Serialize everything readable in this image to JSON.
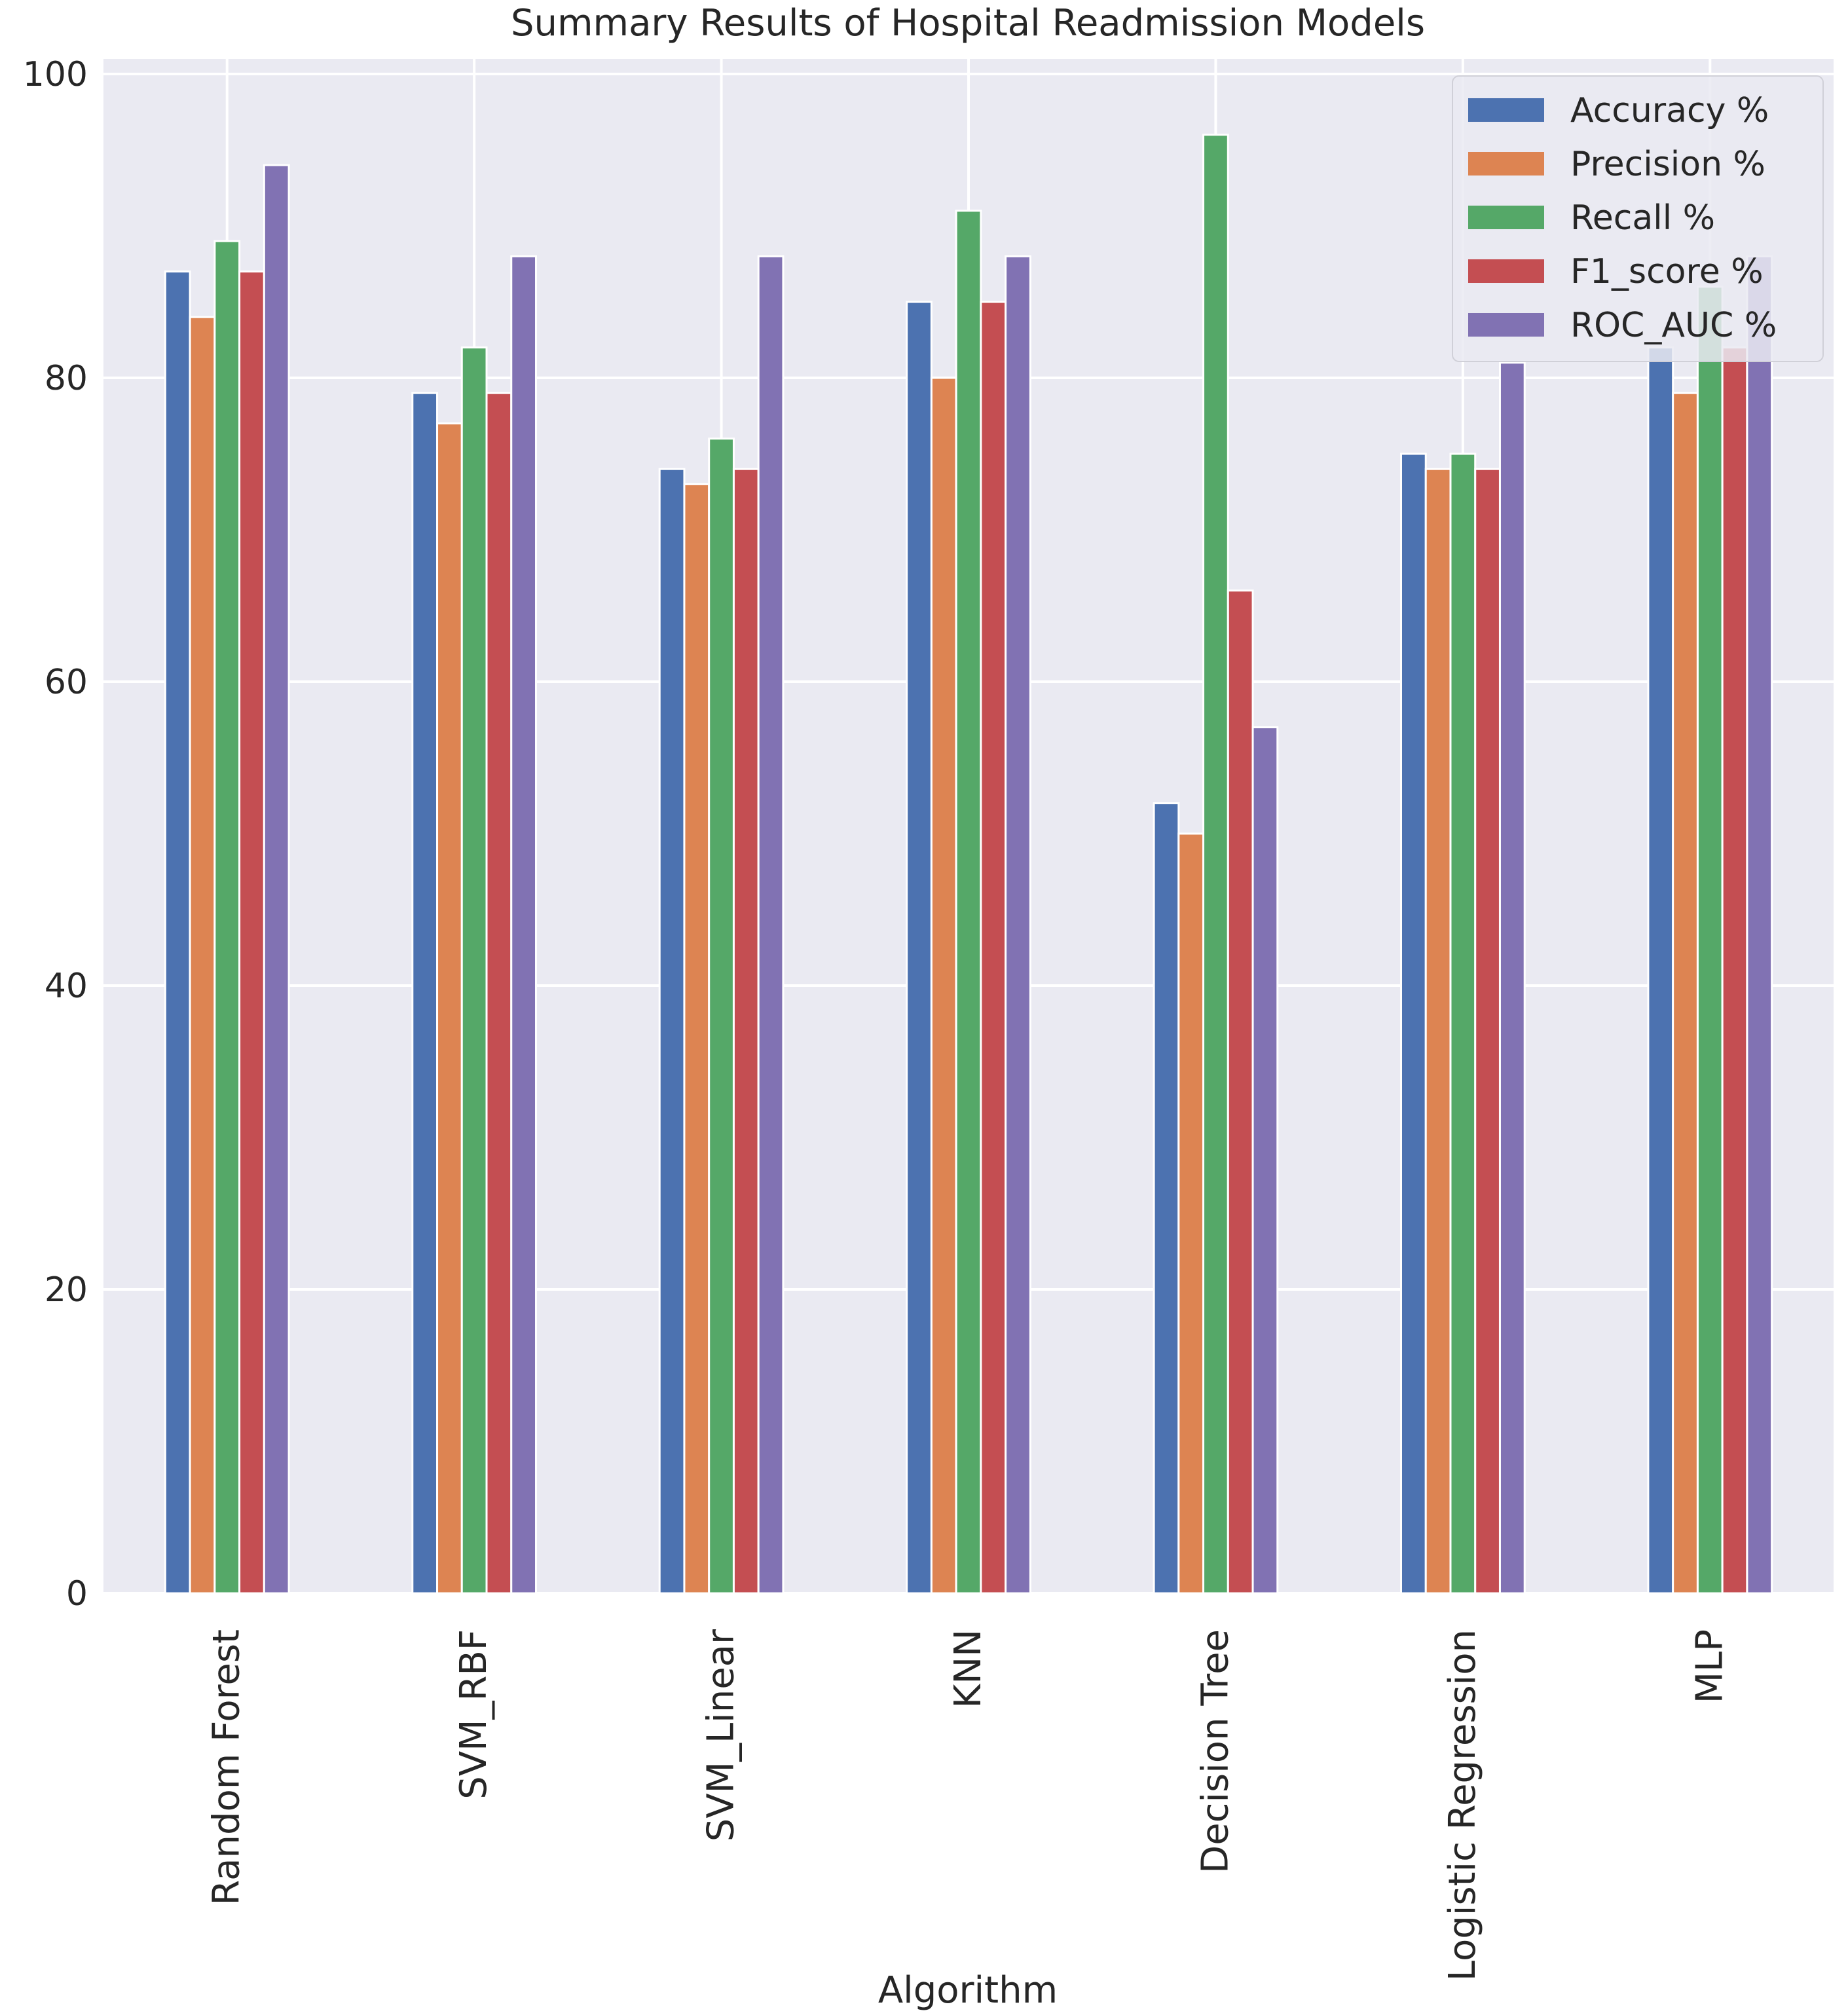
{
  "chart_data": {
    "type": "bar",
    "title": "Summary Results of Hospital Readmission Models",
    "xlabel": "Algorithm",
    "ylabel": "",
    "ylim": [
      0,
      100
    ],
    "yticks": [
      "0",
      "20",
      "40",
      "60",
      "80",
      "100"
    ],
    "grid": true,
    "legend_position": "top-right",
    "categories": [
      "Random Forest",
      "SVM_RBF",
      "SVM_Linear",
      "KNN",
      "Decision Tree",
      "Logistic Regression",
      "MLP"
    ],
    "series": [
      {
        "name": "Accuracy %",
        "color": "#4c72b0",
        "values": [
          87,
          79,
          74,
          85,
          52,
          75,
          82
        ]
      },
      {
        "name": "Precision %",
        "color": "#dd8452",
        "values": [
          84,
          77,
          73,
          80,
          50,
          74,
          79
        ]
      },
      {
        "name": "Recall %",
        "color": "#55a868",
        "values": [
          89,
          82,
          76,
          91,
          96,
          75,
          86
        ]
      },
      {
        "name": "F1_score %",
        "color": "#c44e52",
        "values": [
          87,
          79,
          74,
          85,
          66,
          74,
          82
        ]
      },
      {
        "name": "ROC_AUC %",
        "color": "#8172b3",
        "values": [
          94,
          88,
          88,
          88,
          57,
          81,
          88
        ]
      }
    ]
  }
}
